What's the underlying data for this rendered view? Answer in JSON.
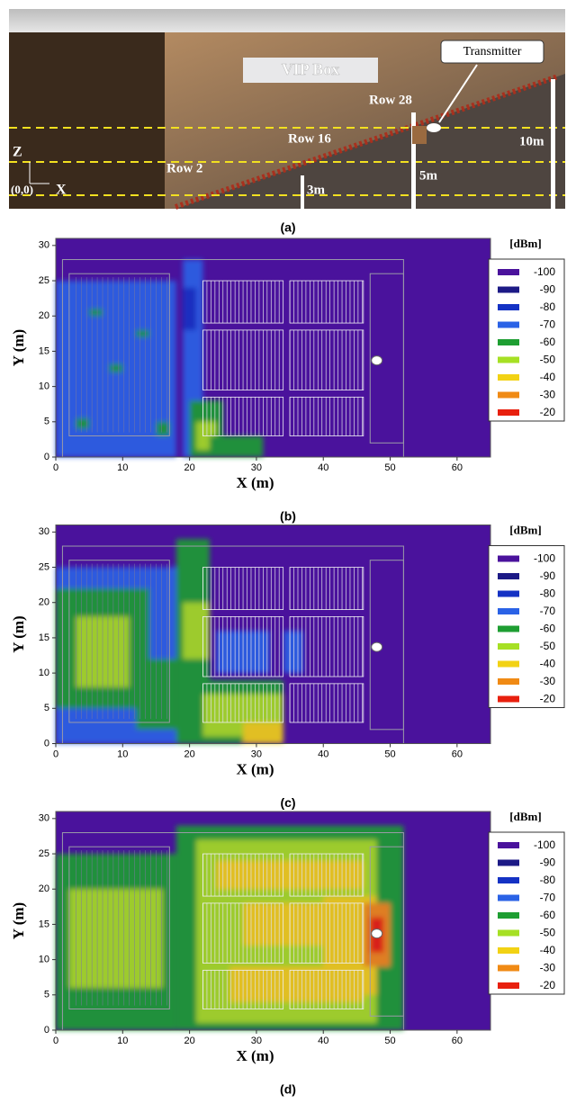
{
  "panel_a": {
    "caption": "(a)",
    "vip": "VIP Box",
    "transmitter": "Transmitter",
    "rows": [
      "Row 28",
      "Row 16",
      "Row 2"
    ],
    "heights": [
      "10m",
      "5m",
      "3m"
    ],
    "axis_z": "Z",
    "axis_x": "X",
    "origin": "(0,0)"
  },
  "heatmaps": [
    {
      "caption": "(b)",
      "x_label": "X (m)",
      "y_label": "Y (m)",
      "xlim": [
        0,
        65
      ],
      "ylim": [
        0,
        31
      ],
      "xticks": [
        0,
        10,
        20,
        30,
        40,
        50,
        60
      ],
      "yticks": [
        0,
        5,
        10,
        15,
        20,
        25,
        30
      ],
      "legend_title": "[dBm]",
      "legend": [
        {
          "value": -100,
          "color": "#4a129c"
        },
        {
          "value": -90,
          "color": "#1c1a86"
        },
        {
          "value": -80,
          "color": "#1432c4"
        },
        {
          "value": -70,
          "color": "#2a62e6"
        },
        {
          "value": -60,
          "color": "#1e9e32"
        },
        {
          "value": -50,
          "color": "#a6e024"
        },
        {
          "value": -40,
          "color": "#f2d214"
        },
        {
          "value": -30,
          "color": "#f08a14"
        },
        {
          "value": -20,
          "color": "#e8200e"
        }
      ]
    },
    {
      "caption": "(c)",
      "x_label": "X (m)",
      "y_label": "Y (m)",
      "xlim": [
        0,
        65
      ],
      "ylim": [
        0,
        31
      ],
      "xticks": [
        0,
        10,
        20,
        30,
        40,
        50,
        60
      ],
      "yticks": [
        0,
        5,
        10,
        15,
        20,
        25,
        30
      ],
      "legend_title": "[dBm]",
      "legend": [
        {
          "value": -100,
          "color": "#4a129c"
        },
        {
          "value": -90,
          "color": "#1c1a86"
        },
        {
          "value": -80,
          "color": "#1432c4"
        },
        {
          "value": -70,
          "color": "#2a62e6"
        },
        {
          "value": -60,
          "color": "#1e9e32"
        },
        {
          "value": -50,
          "color": "#a6e024"
        },
        {
          "value": -40,
          "color": "#f2d214"
        },
        {
          "value": -30,
          "color": "#f08a14"
        },
        {
          "value": -20,
          "color": "#e8200e"
        }
      ]
    },
    {
      "caption": "(d)",
      "x_label": "X (m)",
      "y_label": "Y (m)",
      "xlim": [
        0,
        65
      ],
      "ylim": [
        0,
        31
      ],
      "xticks": [
        0,
        10,
        20,
        30,
        40,
        50,
        60
      ],
      "yticks": [
        0,
        5,
        10,
        15,
        20,
        25,
        30
      ],
      "legend_title": "[dBm]",
      "legend": [
        {
          "value": -100,
          "color": "#4a129c"
        },
        {
          "value": -90,
          "color": "#1c1a86"
        },
        {
          "value": -80,
          "color": "#1432c4"
        },
        {
          "value": -70,
          "color": "#2a62e6"
        },
        {
          "value": -60,
          "color": "#1e9e32"
        },
        {
          "value": -50,
          "color": "#a6e024"
        },
        {
          "value": -40,
          "color": "#f2d214"
        },
        {
          "value": -30,
          "color": "#f08a14"
        },
        {
          "value": -20,
          "color": "#e8200e"
        }
      ]
    }
  ]
}
